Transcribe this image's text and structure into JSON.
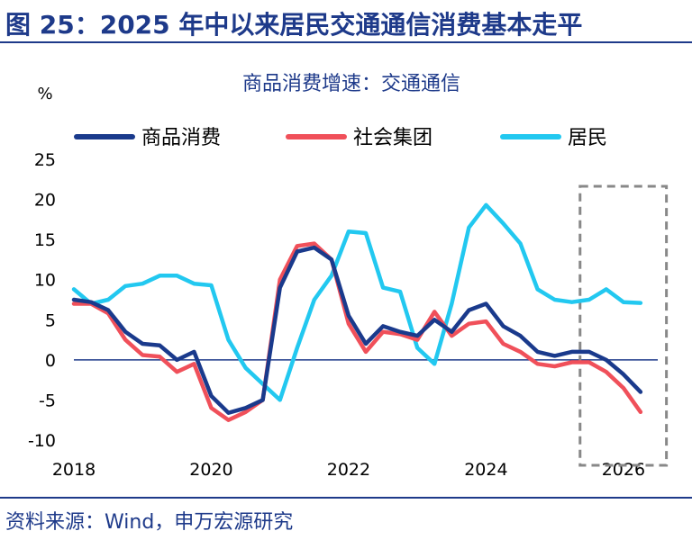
{
  "figure": {
    "title": "图 25：2025 年中以来居民交通通信消费基本走平",
    "source": "资料来源：Wind，申万宏源研究"
  },
  "colors": {
    "heading": "#1e3a8a",
    "series_goods": "#1a3a8c",
    "series_collective": "#f0505a",
    "series_resident": "#22c8f0",
    "highlight_box": "#888888"
  },
  "chart_data": {
    "type": "line",
    "title": "商品消费增速：交通通信",
    "ylabel": "%",
    "ylim": [
      -10,
      25
    ],
    "yticks": [
      25,
      20,
      15,
      10,
      5,
      0,
      -5,
      -10
    ],
    "xlim": [
      2018,
      2026.5
    ],
    "xticks": [
      "2018",
      "2020",
      "2022",
      "2024",
      "2026"
    ],
    "legend_position": "top",
    "highlight_range": [
      2025.5,
      2026.6
    ],
    "x": [
      2018.0,
      2018.25,
      2018.5,
      2018.75,
      2019.0,
      2019.25,
      2019.5,
      2019.75,
      2020.0,
      2020.25,
      2020.5,
      2020.75,
      2021.0,
      2021.25,
      2021.5,
      2021.75,
      2022.0,
      2022.25,
      2022.5,
      2022.75,
      2023.0,
      2023.25,
      2023.5,
      2023.75,
      2024.0,
      2024.25,
      2024.5,
      2024.75,
      2025.0,
      2025.25,
      2025.5,
      2025.75,
      2026.0,
      2026.25,
      2026.5
    ],
    "series": [
      {
        "name": "商品消费",
        "color": "#1a3a8c",
        "values": [
          7.5,
          7.2,
          6.2,
          3.5,
          2.0,
          1.8,
          0.0,
          1.0,
          -4.5,
          -6.6,
          -6.0,
          -5.0,
          9.0,
          13.5,
          14.0,
          12.5,
          5.5,
          2.0,
          4.2,
          3.5,
          3.0,
          5.0,
          3.5,
          6.2,
          7.0,
          4.2,
          3.0,
          1.0,
          0.5,
          1.0,
          1.0,
          0.0,
          -1.8,
          -4.0,
          null
        ],
        "note": "last point aligns near 2026.2"
      },
      {
        "name": "社会集团",
        "color": "#f0505a",
        "values": [
          7.0,
          7.0,
          5.8,
          2.5,
          0.6,
          0.4,
          -1.5,
          -0.5,
          -6.0,
          -7.5,
          -6.5,
          -5.0,
          10.0,
          14.2,
          14.5,
          12.5,
          4.5,
          1.0,
          3.5,
          3.2,
          2.5,
          6.0,
          3.0,
          4.5,
          4.8,
          2.0,
          1.0,
          -0.5,
          -0.8,
          -0.3,
          -0.3,
          -1.5,
          -3.5,
          -6.5,
          null
        ]
      },
      {
        "name": "居民",
        "color": "#22c8f0",
        "values": [
          8.8,
          7.0,
          7.5,
          9.2,
          9.5,
          10.5,
          10.5,
          9.5,
          9.3,
          2.5,
          -1.0,
          -3.0,
          -5.0,
          1.5,
          7.5,
          10.5,
          16.0,
          15.8,
          9.0,
          8.5,
          1.5,
          -0.5,
          7.0,
          16.5,
          19.3,
          17.0,
          14.5,
          8.8,
          7.5,
          7.2,
          7.5,
          8.8,
          7.2,
          7.1,
          null
        ]
      }
    ]
  }
}
